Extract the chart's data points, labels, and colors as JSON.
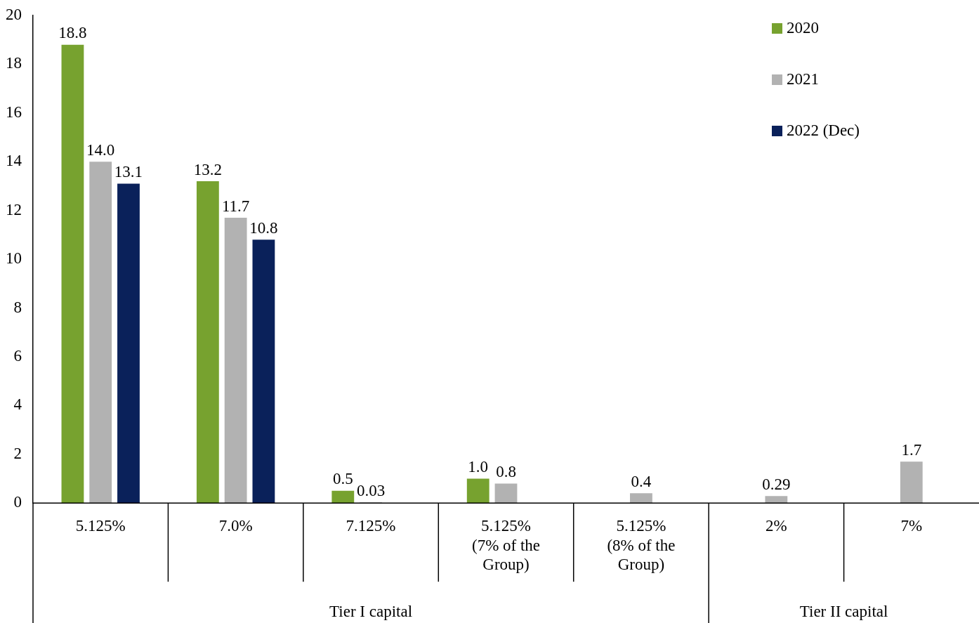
{
  "chart_data": {
    "type": "bar",
    "categories": [
      "5.125%",
      "7.0%",
      "7.125%",
      "5.125% (7% of the Group)",
      "5.125% (8% of the Group)",
      "2%",
      "7%"
    ],
    "series": [
      {
        "name": "2020",
        "color": "#77a22f",
        "values": [
          18.8,
          13.2,
          0.5,
          1.0,
          null,
          null,
          null
        ],
        "value_labels": [
          "18.8",
          "13.2",
          "0.5",
          "1.0",
          null,
          null,
          null
        ]
      },
      {
        "name": "2021",
        "color": "#b2b2b2",
        "values": [
          14.0,
          11.7,
          0.03,
          0.8,
          0.4,
          0.29,
          1.7
        ],
        "value_labels": [
          "14.0",
          "11.7",
          "0.03",
          "0.8",
          "0.4",
          "0.29",
          "1.7"
        ]
      },
      {
        "name": "2022 (Dec)",
        "color": "#0a215a",
        "values": [
          13.1,
          10.8,
          null,
          null,
          null,
          null,
          null
        ],
        "value_labels": [
          "13.1",
          "10.8",
          null,
          null,
          null,
          null,
          null
        ]
      }
    ],
    "ylim": [
      0,
      20
    ],
    "yticks": [
      0,
      2,
      4,
      6,
      8,
      10,
      12,
      14,
      16,
      18,
      20
    ],
    "grid": false,
    "legend": "top right",
    "annotations": [
      "Tier I capital",
      "Tier II capital"
    ]
  }
}
